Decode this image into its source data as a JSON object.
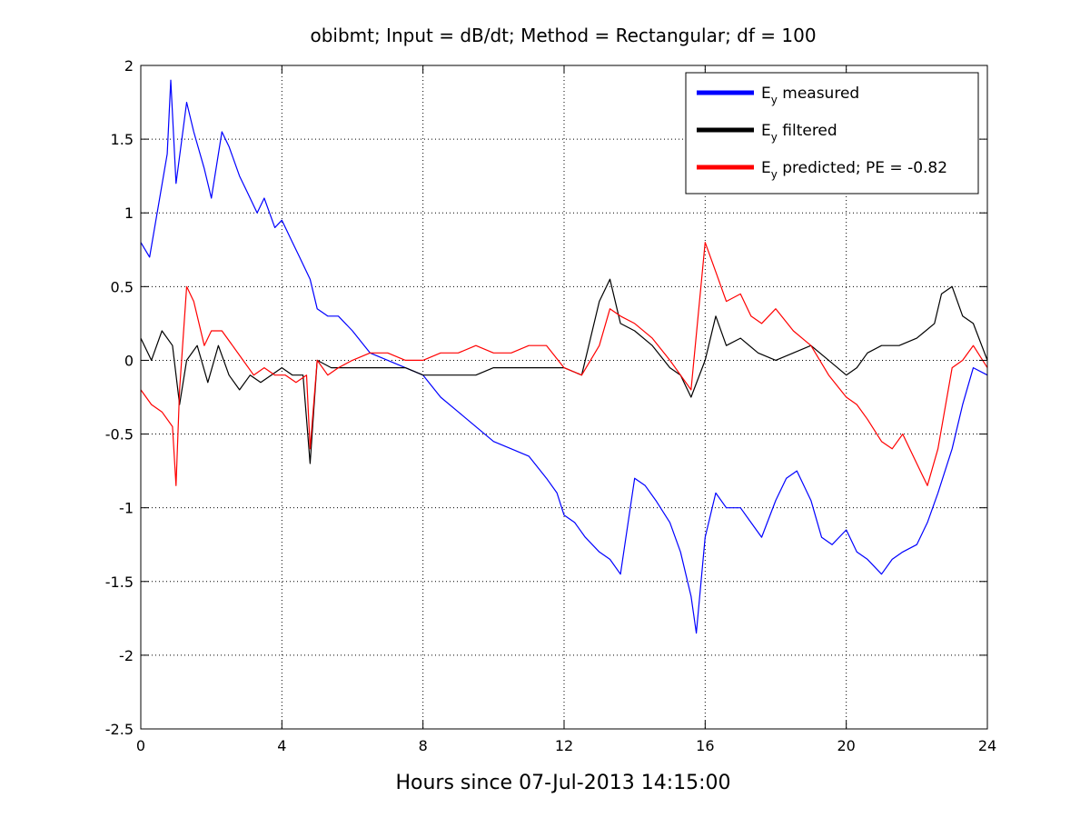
{
  "chart_data": {
    "type": "line",
    "title": "obibmt; Input = dB/dt; Method = Rectangular; df = 100",
    "xlabel": "Hours since 07-Jul-2013 14:15:00",
    "ylabel": "",
    "xlim": [
      0,
      24
    ],
    "ylim": [
      -2.5,
      2
    ],
    "xticks": [
      "0",
      "4",
      "8",
      "12",
      "16",
      "20",
      "24"
    ],
    "yticks": [
      "2",
      "1.5",
      "1",
      "0.5",
      "0",
      "-0.5",
      "-1",
      "-1.5",
      "-2",
      "-2.5"
    ],
    "grid": true,
    "legend_position": "top-right",
    "series": [
      {
        "name_main": "E",
        "name_sub": "y",
        "name_rest": " measured",
        "color": "#0000ff",
        "x": [
          0,
          0.25,
          0.5,
          0.75,
          0.85,
          1.0,
          1.3,
          1.5,
          1.8,
          2.0,
          2.3,
          2.5,
          2.8,
          3.0,
          3.3,
          3.5,
          3.8,
          4.0,
          4.3,
          4.5,
          4.8,
          5.0,
          5.3,
          5.6,
          6.0,
          6.5,
          7.0,
          7.5,
          8.0,
          8.5,
          9.0,
          9.5,
          10.0,
          10.5,
          11.0,
          11.5,
          11.8,
          12.0,
          12.3,
          12.6,
          13.0,
          13.3,
          13.6,
          14.0,
          14.3,
          14.6,
          15.0,
          15.3,
          15.6,
          15.75,
          16.0,
          16.3,
          16.6,
          17.0,
          17.3,
          17.6,
          18.0,
          18.3,
          18.6,
          19.0,
          19.3,
          19.6,
          20.0,
          20.3,
          20.6,
          21.0,
          21.3,
          21.6,
          22.0,
          22.3,
          22.6,
          23.0,
          23.3,
          23.6,
          24.0
        ],
        "y": [
          0.8,
          0.7,
          1.05,
          1.4,
          1.9,
          1.2,
          1.75,
          1.55,
          1.3,
          1.1,
          1.55,
          1.45,
          1.25,
          1.15,
          1.0,
          1.1,
          0.9,
          0.95,
          0.8,
          0.7,
          0.55,
          0.35,
          0.3,
          0.3,
          0.2,
          0.05,
          0.0,
          -0.05,
          -0.1,
          -0.25,
          -0.35,
          -0.45,
          -0.55,
          -0.6,
          -0.65,
          -0.8,
          -0.9,
          -1.05,
          -1.1,
          -1.2,
          -1.3,
          -1.35,
          -1.45,
          -0.8,
          -0.85,
          -0.95,
          -1.1,
          -1.3,
          -1.6,
          -1.85,
          -1.2,
          -0.9,
          -1.0,
          -1.0,
          -1.1,
          -1.2,
          -0.95,
          -0.8,
          -0.75,
          -0.95,
          -1.2,
          -1.25,
          -1.15,
          -1.3,
          -1.35,
          -1.45,
          -1.35,
          -1.3,
          -1.25,
          -1.1,
          -0.9,
          -0.6,
          -0.3,
          -0.05,
          -0.1
        ]
      },
      {
        "name_main": "E",
        "name_sub": "y",
        "name_rest": " filtered",
        "color": "#000000",
        "x": [
          0,
          0.3,
          0.6,
          0.9,
          1.1,
          1.3,
          1.6,
          1.9,
          2.2,
          2.5,
          2.8,
          3.1,
          3.4,
          3.7,
          4.0,
          4.3,
          4.6,
          4.8,
          5.0,
          5.4,
          5.8,
          6.2,
          6.6,
          7.0,
          7.5,
          8.0,
          8.5,
          9.0,
          9.5,
          10.0,
          10.5,
          11.0,
          11.5,
          12.0,
          12.5,
          13.0,
          13.3,
          13.6,
          14.0,
          14.5,
          15.0,
          15.3,
          15.6,
          16.0,
          16.3,
          16.6,
          17.0,
          17.5,
          18.0,
          18.5,
          19.0,
          19.5,
          20.0,
          20.3,
          20.6,
          21.0,
          21.5,
          22.0,
          22.5,
          22.7,
          23.0,
          23.3,
          23.6,
          24.0
        ],
        "y": [
          0.15,
          0.0,
          0.2,
          0.1,
          -0.3,
          0.0,
          0.1,
          -0.15,
          0.1,
          -0.1,
          -0.2,
          -0.1,
          -0.15,
          -0.1,
          -0.05,
          -0.1,
          -0.1,
          -0.7,
          0.0,
          -0.05,
          -0.05,
          -0.05,
          -0.05,
          -0.05,
          -0.05,
          -0.1,
          -0.1,
          -0.1,
          -0.1,
          -0.05,
          -0.05,
          -0.05,
          -0.05,
          -0.05,
          -0.1,
          0.4,
          0.55,
          0.25,
          0.2,
          0.1,
          -0.05,
          -0.1,
          -0.25,
          0.0,
          0.3,
          0.1,
          0.15,
          0.05,
          0.0,
          0.05,
          0.1,
          0.0,
          -0.1,
          -0.05,
          0.05,
          0.1,
          0.1,
          0.15,
          0.25,
          0.45,
          0.5,
          0.3,
          0.25,
          0.0
        ]
      },
      {
        "name_main": "E",
        "name_sub": "y",
        "name_rest": " predicted; PE = -0.82",
        "color": "#ff0000",
        "x": [
          0,
          0.3,
          0.6,
          0.9,
          1.0,
          1.1,
          1.3,
          1.5,
          1.8,
          2.0,
          2.3,
          2.6,
          2.9,
          3.2,
          3.5,
          3.8,
          4.1,
          4.4,
          4.7,
          4.8,
          5.0,
          5.3,
          5.6,
          6.0,
          6.5,
          7.0,
          7.5,
          8.0,
          8.5,
          9.0,
          9.5,
          10.0,
          10.5,
          11.0,
          11.5,
          12.0,
          12.5,
          13.0,
          13.3,
          13.6,
          14.0,
          14.5,
          15.0,
          15.3,
          15.6,
          16.0,
          16.3,
          16.6,
          17.0,
          17.3,
          17.6,
          18.0,
          18.5,
          19.0,
          19.5,
          20.0,
          20.3,
          20.6,
          21.0,
          21.3,
          21.6,
          22.0,
          22.3,
          22.6,
          23.0,
          23.3,
          23.6,
          24.0
        ],
        "y": [
          -0.2,
          -0.3,
          -0.35,
          -0.45,
          -0.85,
          -0.2,
          0.5,
          0.4,
          0.1,
          0.2,
          0.2,
          0.1,
          0.0,
          -0.1,
          -0.05,
          -0.1,
          -0.1,
          -0.15,
          -0.1,
          -0.6,
          0.0,
          -0.1,
          -0.05,
          0.0,
          0.05,
          0.05,
          0.0,
          0.0,
          0.05,
          0.05,
          0.1,
          0.05,
          0.05,
          0.1,
          0.1,
          -0.05,
          -0.1,
          0.1,
          0.35,
          0.3,
          0.25,
          0.15,
          0.0,
          -0.1,
          -0.2,
          0.8,
          0.6,
          0.4,
          0.45,
          0.3,
          0.25,
          0.35,
          0.2,
          0.1,
          -0.1,
          -0.25,
          -0.3,
          -0.4,
          -0.55,
          -0.6,
          -0.5,
          -0.7,
          -0.85,
          -0.6,
          -0.05,
          0.0,
          0.1,
          -0.05
        ]
      }
    ]
  }
}
